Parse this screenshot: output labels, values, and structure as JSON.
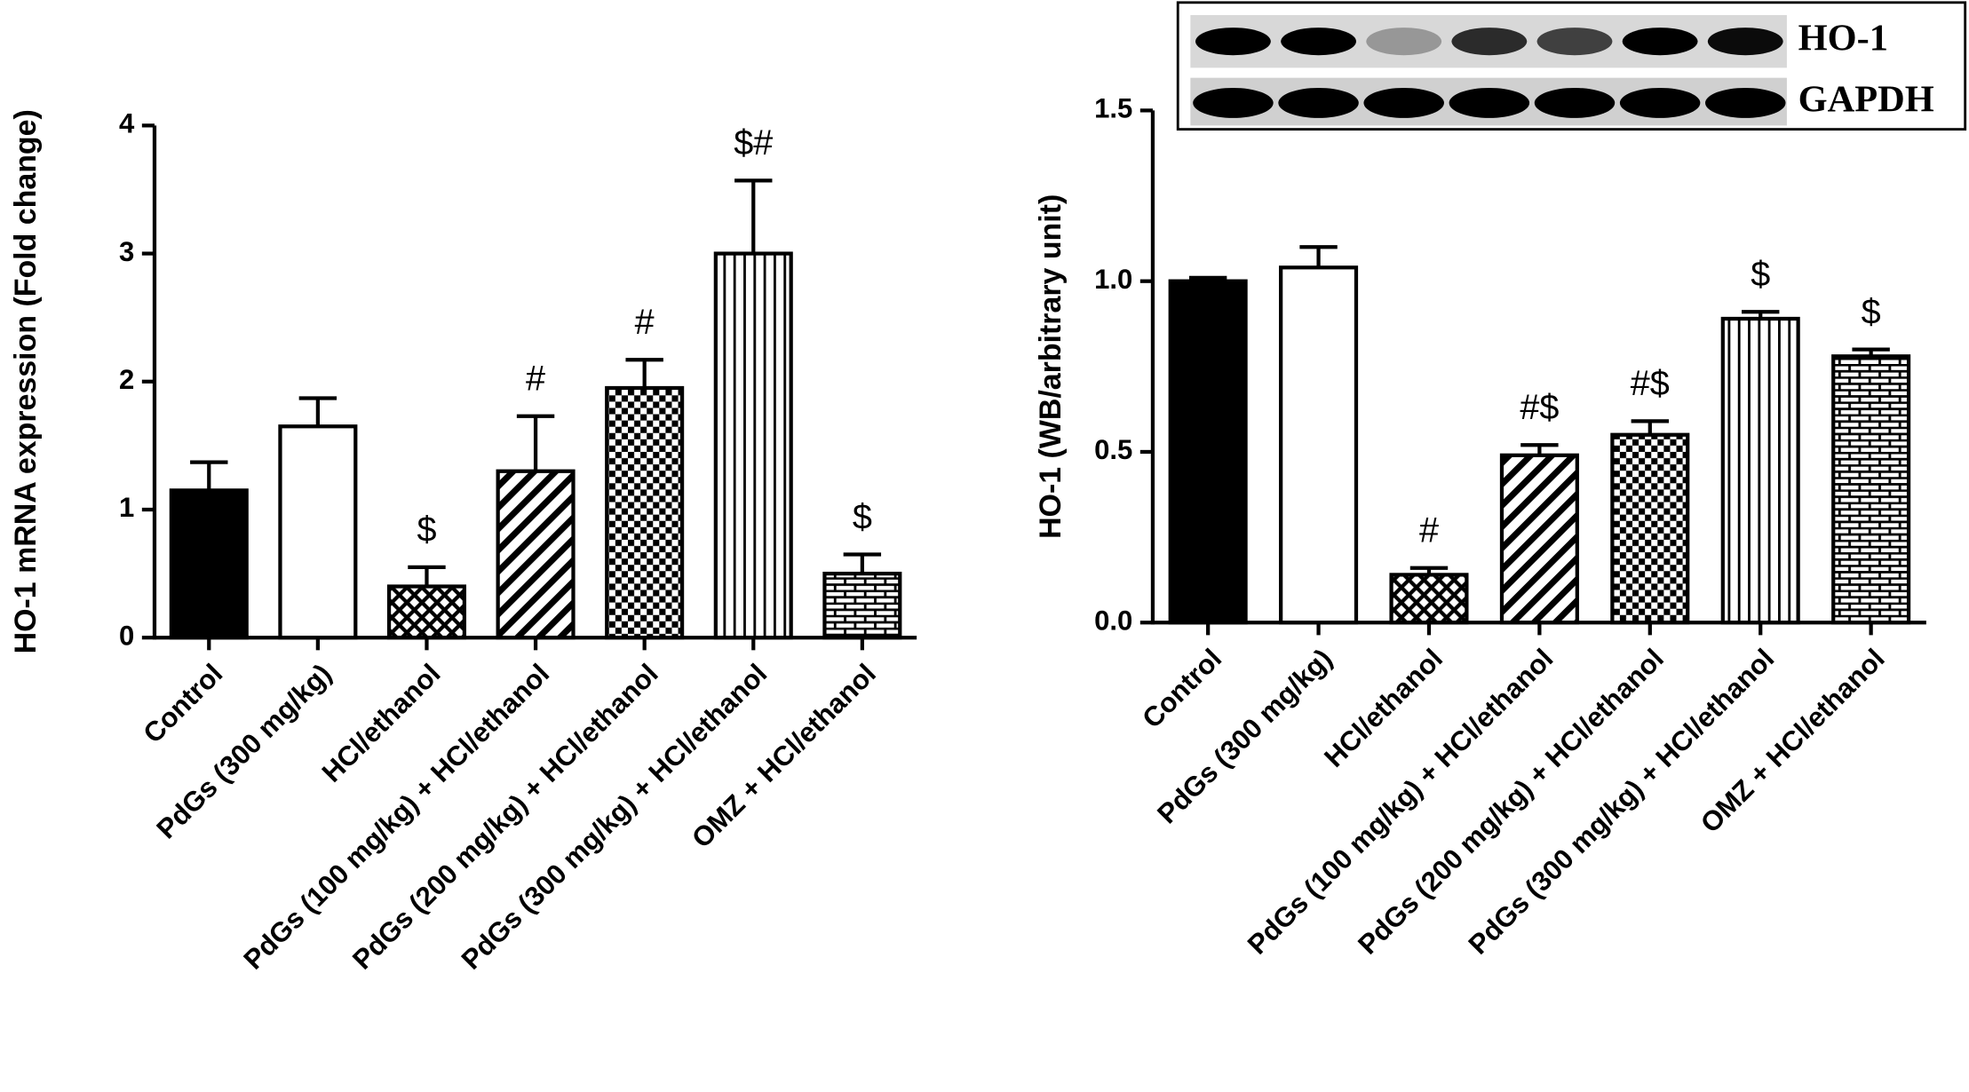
{
  "chart_data": [
    {
      "type": "bar",
      "y_label": "HO-1 mRNA expression (Fold change)",
      "categories": [
        "Control",
        "PdGs (300 mg/kg)",
        "HCl/ethanol",
        "PdGs (100 mg/kg) + HCl/ethanol",
        "PdGs (200 mg/kg) + HCl/ethanol",
        "PdGs (300 mg/kg) + HCl/ethanol",
        "OMZ + HCl/ethanol"
      ],
      "values": [
        1.15,
        1.65,
        0.4,
        1.3,
        1.95,
        3.0,
        0.5
      ],
      "errors": [
        0.22,
        0.22,
        0.15,
        0.43,
        0.22,
        0.57,
        0.15
      ],
      "annotations": [
        null,
        null,
        "$",
        "#",
        "#",
        "$#",
        "$"
      ],
      "patterns": [
        "solid",
        "none",
        "crosshatch",
        "diagonal",
        "checker",
        "vertical",
        "brick"
      ],
      "color": "#000000",
      "ylim": [
        0,
        4
      ],
      "yticks": [
        0,
        1,
        2,
        3,
        4
      ]
    },
    {
      "type": "bar",
      "y_label": "HO-1 (WB/arbitrary unit)",
      "categories": [
        "Control",
        "PdGs (300 mg/kg)",
        "HCl/ethanol",
        "PdGs (100 mg/kg) + HCl/ethanol",
        "PdGs (200 mg/kg) + HCl/ethanol",
        "PdGs (300 mg/kg) + HCl/ethanol",
        "OMZ + HCl/ethanol"
      ],
      "values": [
        1.0,
        1.04,
        0.14,
        0.49,
        0.55,
        0.89,
        0.78
      ],
      "errors": [
        0.01,
        0.06,
        0.02,
        0.03,
        0.04,
        0.02,
        0.02
      ],
      "annotations": [
        null,
        null,
        "#",
        "#$",
        "#$",
        "$",
        "$"
      ],
      "patterns": [
        "solid",
        "none",
        "crosshatch",
        "diagonal",
        "checker",
        "vertical",
        "brick"
      ],
      "color": "#000000",
      "ylim": [
        0,
        1.5
      ],
      "yticks": [
        {
          "value": 0,
          "label": "0.0"
        },
        0.5,
        {
          "value": 1,
          "label": "1.0"
        },
        1.5
      ],
      "inset_labels": [
        "HO-1",
        "GAPDH"
      ]
    }
  ]
}
